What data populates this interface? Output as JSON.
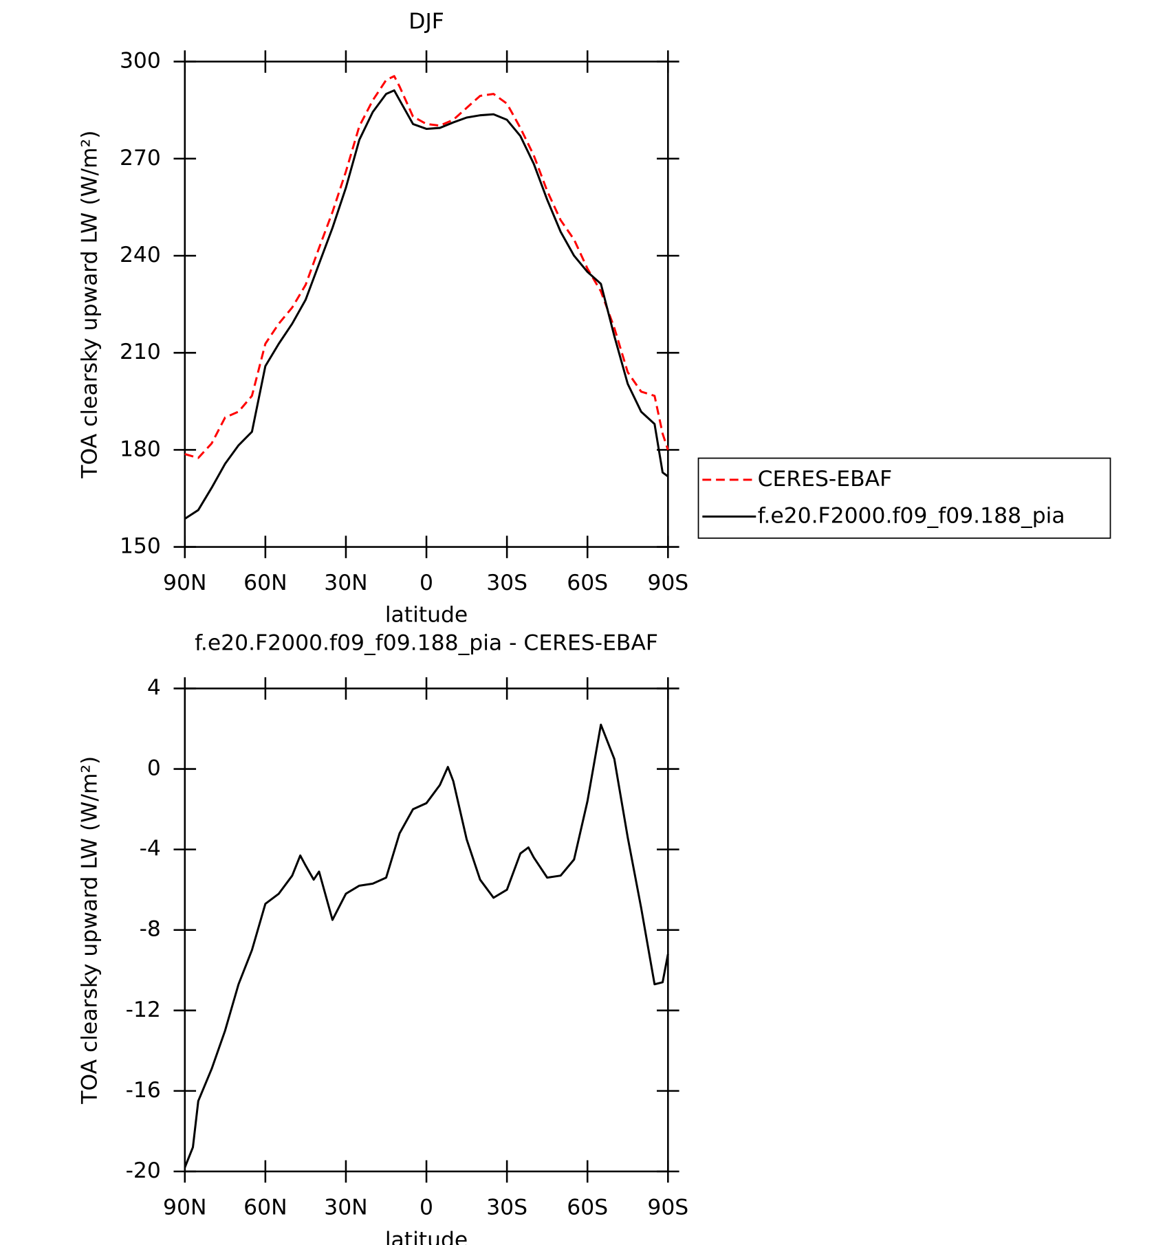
{
  "chart_data": [
    {
      "type": "line",
      "title": "DJF",
      "x_label": "latitude",
      "y_label": "TOA clearsky upward LW (W/m²)",
      "xlim": [
        90,
        -90
      ],
      "xticks": [
        {
          "value": 90,
          "label": "90N"
        },
        {
          "value": 60,
          "label": "60N"
        },
        {
          "value": 30,
          "label": "30N"
        },
        0,
        {
          "value": -30,
          "label": "30S"
        },
        {
          "value": -60,
          "label": "60S"
        },
        {
          "value": -90,
          "label": "90S"
        }
      ],
      "ylim": [
        150,
        300
      ],
      "yticks": [
        150,
        180,
        210,
        240,
        270,
        300
      ],
      "legend": "right",
      "x": [
        90,
        85,
        80,
        75,
        70,
        65,
        60,
        55,
        50,
        45,
        40,
        35,
        30,
        25,
        20,
        15,
        12,
        10,
        5,
        0,
        -5,
        -10,
        -15,
        -20,
        -25,
        -30,
        -35,
        -40,
        -45,
        -50,
        -55,
        -60,
        -65,
        -70,
        -75,
        -80,
        -85,
        -88,
        -90
      ],
      "series": [
        {
          "name": "CERES-EBAF",
          "color": "#ff0000",
          "dashed": true,
          "values": [
            178.7,
            177.5,
            182,
            190,
            191.8,
            196.7,
            212.8,
            219,
            224,
            231,
            242.4,
            253.5,
            266,
            280,
            288,
            294.3,
            295.5,
            292.3,
            283,
            280.7,
            280.2,
            282,
            285.7,
            289.4,
            290,
            287,
            279.5,
            271,
            260,
            251,
            245,
            236,
            229,
            217.7,
            204,
            198,
            196.7,
            185,
            180
          ]
        },
        {
          "name": "f.e20.F2000.f09_f09.188_pia",
          "color": "#000000",
          "dashed": false,
          "values": [
            158.7,
            161.4,
            168.3,
            175.7,
            181.4,
            185.6,
            205.9,
            212.8,
            219,
            226.4,
            237.5,
            248.6,
            261,
            275.8,
            284.4,
            290,
            291.1,
            288.1,
            280.7,
            279.2,
            279.5,
            281.2,
            282.7,
            283.4,
            283.7,
            282,
            277,
            268.4,
            257.3,
            247.4,
            240,
            235,
            231.3,
            215.2,
            200.4,
            191.8,
            188,
            173,
            171.8
          ]
        }
      ]
    },
    {
      "type": "line",
      "title": "f.e20.F2000.f09_f09.188_pia - CERES-EBAF",
      "x_label": "latitude",
      "y_label": "TOA clearsky upward LW (W/m²)",
      "xlim": [
        90,
        -90
      ],
      "xticks": [
        {
          "value": 90,
          "label": "90N"
        },
        {
          "value": 60,
          "label": "60N"
        },
        {
          "value": 30,
          "label": "30N"
        },
        0,
        {
          "value": -30,
          "label": "30S"
        },
        {
          "value": -60,
          "label": "60S"
        },
        {
          "value": -90,
          "label": "90S"
        }
      ],
      "ylim": [
        -20,
        4
      ],
      "yticks": [
        -20,
        -16,
        -12,
        -8,
        -4,
        0,
        4
      ],
      "x": [
        90,
        87,
        85,
        80,
        75,
        70,
        65,
        60,
        55,
        50,
        47,
        45,
        42,
        40,
        35,
        30,
        25,
        20,
        15,
        10,
        5,
        0,
        -5,
        -8,
        -10,
        -15,
        -20,
        -25,
        -30,
        -35,
        -38,
        -40,
        -45,
        -50,
        -55,
        -60,
        -65,
        -70,
        -75,
        -80,
        -85,
        -88,
        -90
      ],
      "series": [
        {
          "color": "#000000",
          "dashed": false,
          "values": [
            -19.8,
            -18.8,
            -16.5,
            -14.9,
            -13,
            -10.7,
            -9,
            -6.7,
            -6.2,
            -5.3,
            -4.3,
            -4.8,
            -5.5,
            -5.1,
            -7.5,
            -6.2,
            -5.8,
            -5.7,
            -5.4,
            -3.2,
            -2,
            -1.7,
            -0.8,
            0.1,
            -0.6,
            -3.5,
            -5.5,
            -6.4,
            -6,
            -4.2,
            -3.9,
            -4.4,
            -5.4,
            -5.3,
            -4.5,
            -1.6,
            2.2,
            0.5,
            -3.4,
            -6.9,
            -10.7,
            -10.6,
            -9.2
          ]
        }
      ]
    }
  ]
}
